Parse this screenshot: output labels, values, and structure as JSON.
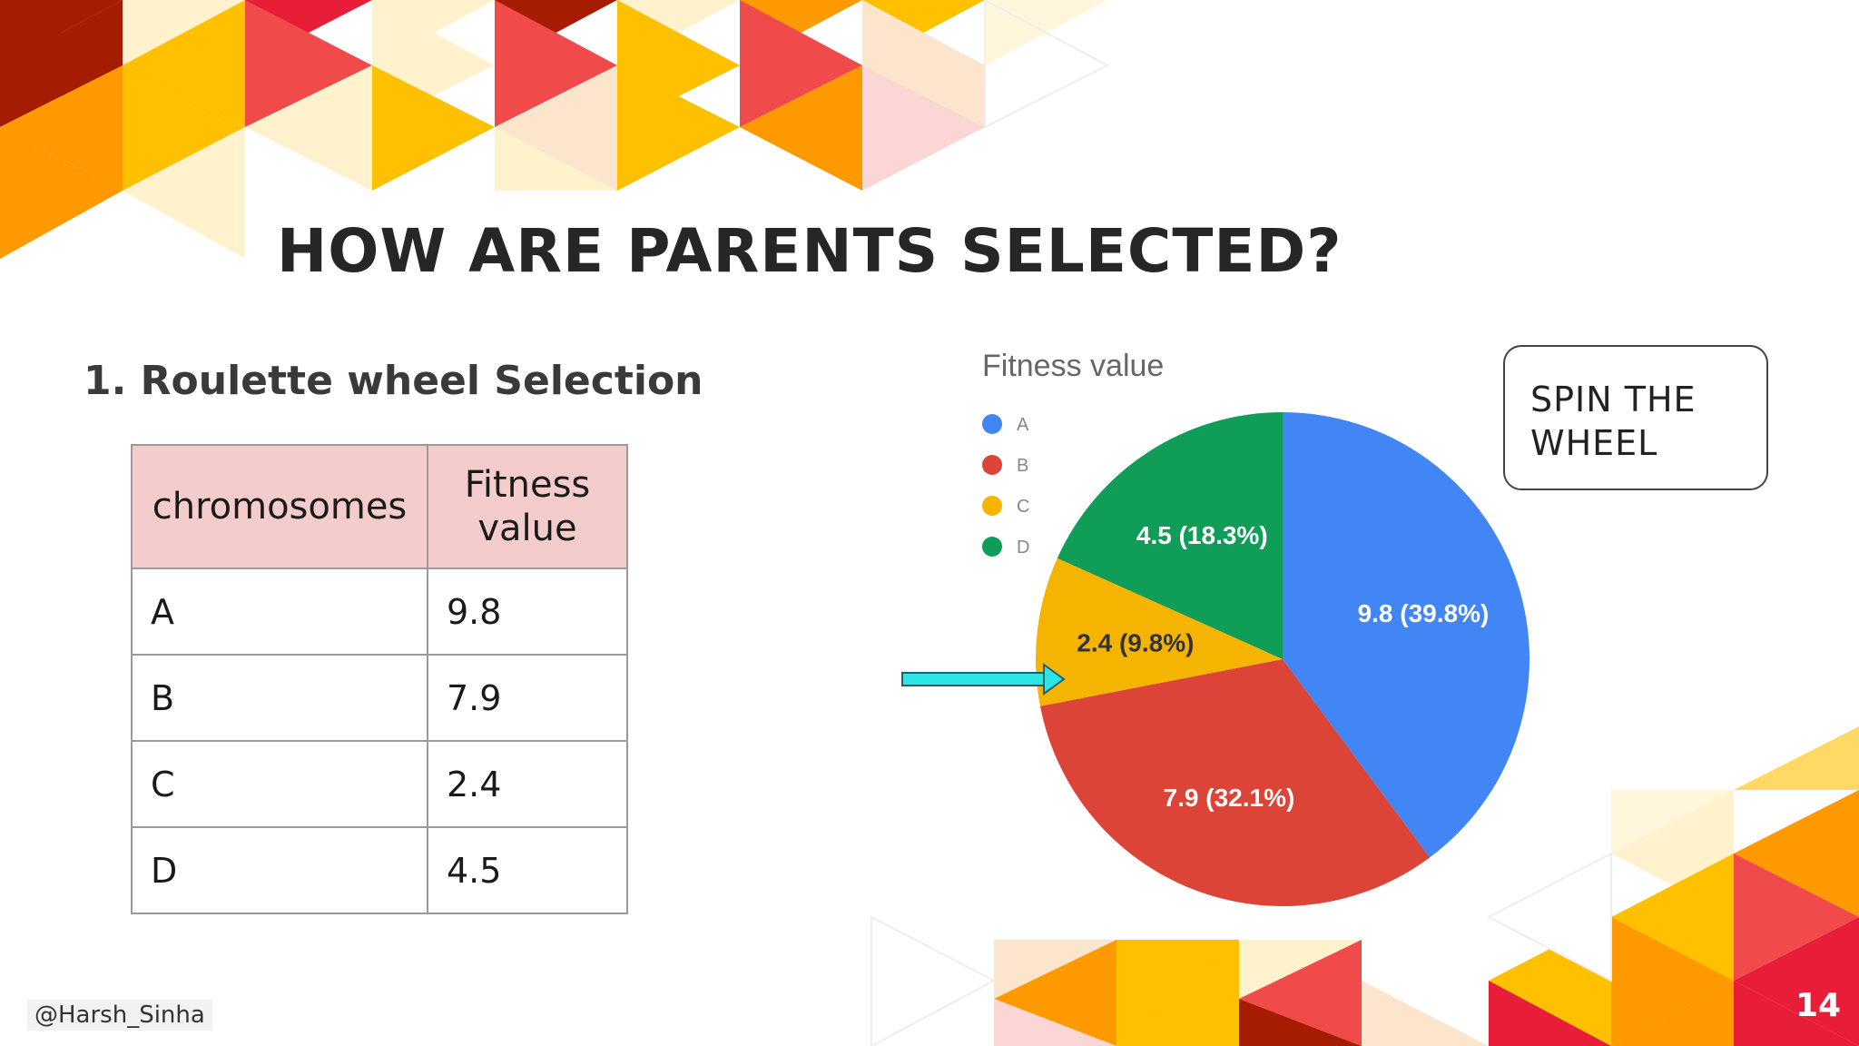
{
  "slide": {
    "title": "HOW ARE PARENTS SELECTED?",
    "subtitle": "1. Roulette wheel Selection",
    "spin_label_line1": "SPIN THE",
    "spin_label_line2": "WHEEL",
    "handle": "@Harsh_Sinha",
    "page_number": "14"
  },
  "table": {
    "headers": [
      "chromosomes",
      "Fitness value"
    ],
    "rows": [
      {
        "chromosome": "A",
        "fitness": "9.8"
      },
      {
        "chromosome": "B",
        "fitness": "7.9"
      },
      {
        "chromosome": "C",
        "fitness": "2.4"
      },
      {
        "chromosome": "D",
        "fitness": "4.5"
      }
    ]
  },
  "chart_data": {
    "type": "pie",
    "title": "Fitness value",
    "legend_position": "left",
    "categories": [
      "A",
      "B",
      "C",
      "D"
    ],
    "values": [
      9.8,
      7.9,
      2.4,
      4.5
    ],
    "labels": [
      "9.8 (39.8%)",
      "7.9 (32.1%)",
      "2.4 (9.8%)",
      "4.5 (18.3%)"
    ],
    "colors": [
      "#4285f4",
      "#db4437",
      "#f4b400",
      "#0f9d58"
    ],
    "pointer_color": "#2ce6e6",
    "pointer_target": "C"
  }
}
